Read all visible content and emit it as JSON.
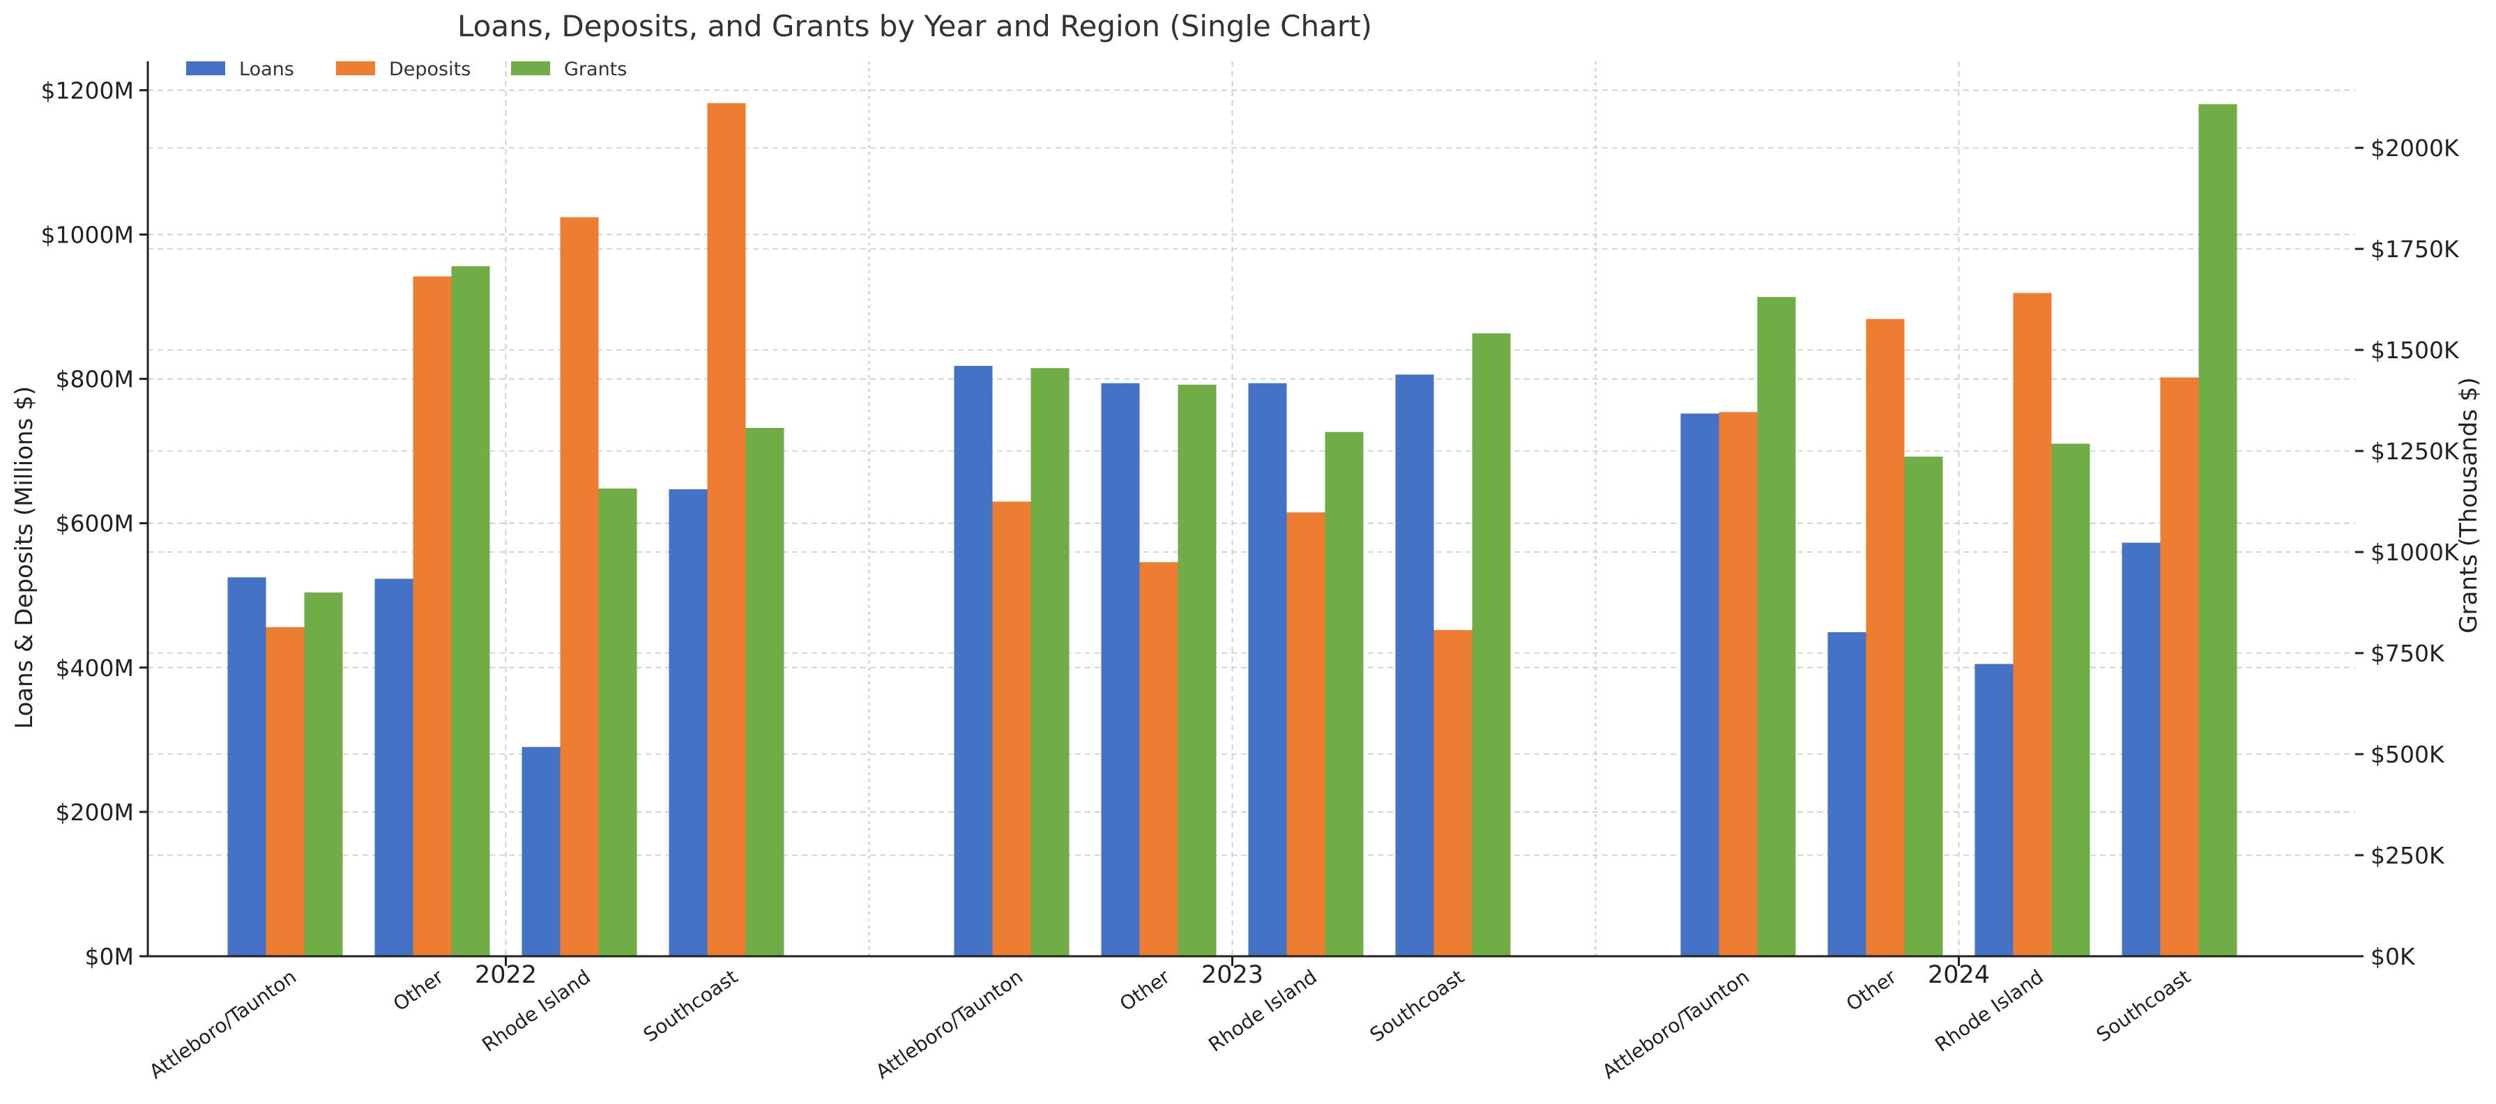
{
  "chart_data": {
    "type": "bar",
    "title": "Loans, Deposits, and Grants by Year and Region (Single Chart)",
    "ylabel": "Loans & Deposits (Millions $)",
    "ylabel_right": "Grants (Thousands $)",
    "ylim": [
      0,
      1240
    ],
    "ylim_right": [
      0,
      2214
    ],
    "yticks": [
      {
        "value": 0,
        "label": "$0M"
      },
      {
        "value": 200,
        "label": "$200M"
      },
      {
        "value": 400,
        "label": "$400M"
      },
      {
        "value": 600,
        "label": "$600M"
      },
      {
        "value": 800,
        "label": "$800M"
      },
      {
        "value": 1000,
        "label": "$1000M"
      },
      {
        "value": 1200,
        "label": "$1200M"
      }
    ],
    "yticks_right": [
      {
        "value": 0,
        "label": "$0K"
      },
      {
        "value": 250,
        "label": "$250K"
      },
      {
        "value": 500,
        "label": "$500K"
      },
      {
        "value": 750,
        "label": "$750K"
      },
      {
        "value": 1000,
        "label": "$1000K"
      },
      {
        "value": 1250,
        "label": "$1250K"
      },
      {
        "value": 1500,
        "label": "$1500K"
      },
      {
        "value": 1750,
        "label": "$1750K"
      },
      {
        "value": 2000,
        "label": "$2000K"
      }
    ],
    "grid": true,
    "legend_position": "top-left",
    "years": [
      "2022",
      "2023",
      "2024"
    ],
    "regions": [
      "Attleboro/Taunton",
      "Other",
      "Rhode Island",
      "Southcoast"
    ],
    "series": [
      {
        "name": "Loans",
        "axis": "left",
        "color": "#4472c4",
        "values": [
          [
            525,
            523,
            290,
            647
          ],
          [
            818,
            794,
            794,
            806
          ],
          [
            752,
            449,
            405,
            573
          ]
        ]
      },
      {
        "name": "Deposits",
        "axis": "left",
        "color": "#ed7d31",
        "values": [
          [
            456,
            942,
            1024,
            1182
          ],
          [
            630,
            546,
            615,
            452
          ],
          [
            754,
            883,
            919,
            802
          ]
        ]
      },
      {
        "name": "Grants",
        "axis": "right",
        "color": "#70ad47",
        "values": [
          [
            900,
            1707,
            1157,
            1307
          ],
          [
            1455,
            1414,
            1297,
            1541
          ],
          [
            1631,
            1236,
            1268,
            2108
          ]
        ]
      }
    ]
  }
}
